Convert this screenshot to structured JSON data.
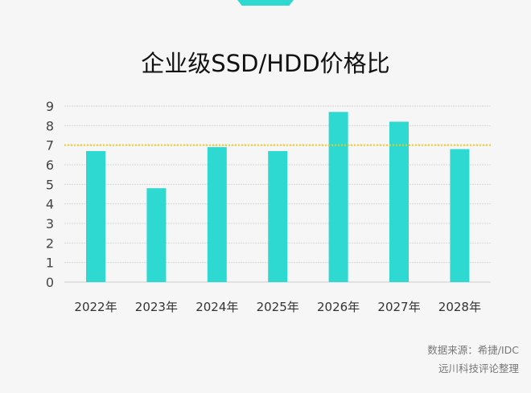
{
  "chart_data": {
    "type": "bar",
    "title": "企业级SSD/HDD价格比",
    "categories": [
      "2022年",
      "2023年",
      "2024年",
      "2025年",
      "2026年",
      "2027年",
      "2028年"
    ],
    "values": [
      6.7,
      4.8,
      6.9,
      6.7,
      8.7,
      8.2,
      6.8
    ],
    "ylim": [
      0,
      9
    ],
    "yticks": [
      0,
      1,
      2,
      3,
      4,
      5,
      6,
      7,
      8,
      9
    ],
    "reference_line": 7,
    "grid": true,
    "colors": {
      "bar": "#2dd9d0",
      "reference_line": "#f2c81a",
      "grid": "#d8d8d8"
    }
  },
  "source": {
    "line1": "数据来源：希捷/IDC",
    "line2": "远川科技评论整理"
  }
}
